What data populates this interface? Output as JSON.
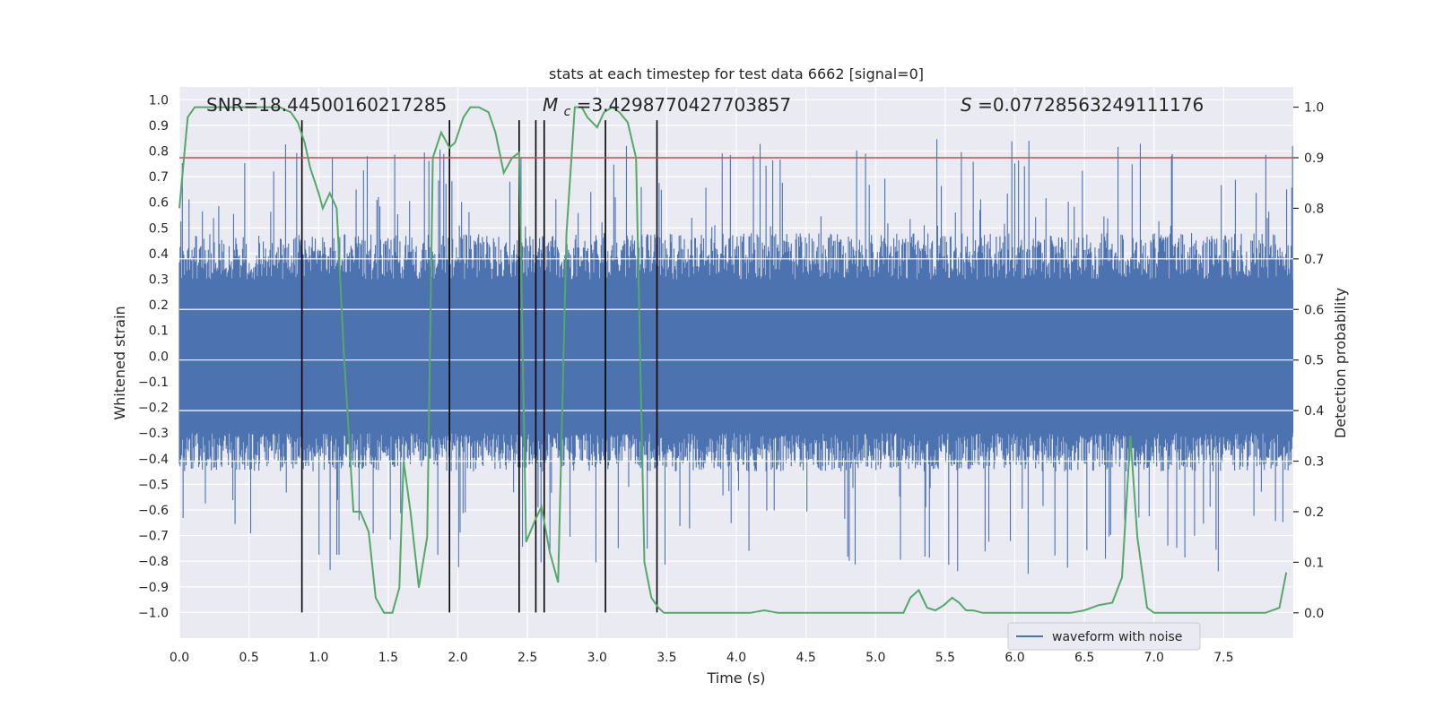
{
  "chart_data": {
    "type": "line",
    "title": "stats at each timestep for test data 6662 [signal=0]",
    "xlabel": "Time (s)",
    "ylabel": "Whitened strain",
    "ylabel_right": "Detection probability",
    "xlim": [
      0.0,
      8.0
    ],
    "ylim": [
      -1.1,
      1.05
    ],
    "ylim_right": [
      -0.05,
      1.04
    ],
    "x_ticks": [
      0.0,
      0.5,
      1.0,
      1.5,
      2.0,
      2.5,
      3.0,
      3.5,
      4.0,
      4.5,
      5.0,
      5.5,
      6.0,
      6.5,
      7.0,
      7.5
    ],
    "x_tick_labels": [
      "0.0",
      "0.5",
      "1.0",
      "1.5",
      "2.0",
      "2.5",
      "3.0",
      "3.5",
      "4.0",
      "4.5",
      "5.0",
      "5.5",
      "6.0",
      "6.5",
      "7.0",
      "7.5"
    ],
    "y_ticks": [
      1.0,
      0.9,
      0.8,
      0.7,
      0.6,
      0.5,
      0.4,
      0.3,
      0.2,
      0.1,
      0.0,
      -0.1,
      -0.2,
      -0.3,
      -0.4,
      -0.5,
      -0.6,
      -0.7,
      -0.8,
      -0.9,
      -1.0
    ],
    "y_tick_labels": [
      "1.0",
      "0.9",
      "0.8",
      "0.7",
      "0.6",
      "0.5",
      "0.4",
      "0.3",
      "0.2",
      "0.1",
      "0.0",
      "−0.1",
      "−0.2",
      "−0.3",
      "−0.4",
      "−0.5",
      "−0.6",
      "−0.7",
      "−0.8",
      "−0.9",
      "−1.0"
    ],
    "y_right_ticks": [
      1.0,
      0.9,
      0.8,
      0.7,
      0.6,
      0.5,
      0.4,
      0.3,
      0.2,
      0.1,
      0.0
    ],
    "y_right_tick_labels": [
      "1.0",
      "0.9",
      "0.8",
      "0.7",
      "0.6",
      "0.5",
      "0.4",
      "0.3",
      "0.2",
      "0.1",
      "0.0"
    ],
    "annotations": {
      "snr": "SNR=18.44500160217285",
      "mc_symbol": "M",
      "mc_sub": "c",
      "mc_value": "=3.4298770427703857",
      "s_symbol": "S",
      "s_value": "=0.07728563249111176"
    },
    "threshold_right": 0.9,
    "threshold_color": "#c44e52",
    "vertical_lines_x": [
      0.88,
      1.94,
      2.44,
      2.56,
      2.62,
      3.06,
      3.43
    ],
    "strain_color": "#4c72b0",
    "prob_color": "#55a868",
    "strain_envelope_note": "dense noise, typical band about -0.45..0.45, spikes to about +/-0.95",
    "series": [
      {
        "name": "detection probability",
        "axis": "right",
        "x": [
          0.0,
          0.06,
          0.11,
          0.17,
          0.28,
          0.39,
          0.5,
          0.61,
          0.72,
          0.8,
          0.85,
          0.9,
          0.94,
          1.0,
          1.03,
          1.08,
          1.13,
          1.18,
          1.25,
          1.3,
          1.36,
          1.41,
          1.47,
          1.53,
          1.58,
          1.61,
          1.66,
          1.72,
          1.78,
          1.82,
          1.88,
          1.94,
          1.98,
          2.04,
          2.09,
          2.15,
          2.22,
          2.27,
          2.33,
          2.39,
          2.44,
          2.49,
          2.55,
          2.6,
          2.66,
          2.72,
          2.78,
          2.84,
          2.89,
          2.93,
          3.0,
          3.05,
          3.11,
          3.16,
          3.22,
          3.28,
          3.34,
          3.39,
          3.44,
          3.48,
          3.53,
          3.58,
          3.64,
          3.71,
          3.78,
          3.85,
          3.9,
          4.0,
          4.1,
          4.2,
          4.3,
          4.4,
          4.5,
          4.6,
          4.7,
          4.8,
          4.9,
          5.0,
          5.1,
          5.2,
          5.25,
          5.31,
          5.37,
          5.43,
          5.49,
          5.55,
          5.6,
          5.65,
          5.7,
          5.77,
          5.9,
          6.0,
          6.1,
          6.2,
          6.3,
          6.4,
          6.5,
          6.6,
          6.7,
          6.77,
          6.83,
          6.88,
          6.95,
          7.0,
          7.06,
          7.12,
          7.2,
          7.3,
          7.4,
          7.5,
          7.6,
          7.7,
          7.8,
          7.9,
          7.95
        ],
        "values": [
          0.8,
          0.98,
          1.0,
          1.0,
          1.0,
          1.0,
          1.0,
          1.0,
          1.0,
          0.99,
          0.97,
          0.93,
          0.88,
          0.83,
          0.8,
          0.83,
          0.8,
          0.52,
          0.2,
          0.2,
          0.16,
          0.03,
          0.0,
          0.0,
          0.05,
          0.3,
          0.2,
          0.05,
          0.15,
          0.9,
          0.95,
          0.92,
          0.93,
          0.98,
          1.0,
          1.0,
          0.99,
          0.95,
          0.87,
          0.9,
          0.91,
          0.14,
          0.18,
          0.21,
          0.12,
          0.06,
          0.75,
          1.0,
          1.0,
          0.98,
          0.96,
          0.99,
          1.0,
          0.99,
          0.97,
          0.9,
          0.1,
          0.03,
          0.01,
          0.0,
          0.0,
          0.0,
          0.0,
          0.0,
          0.0,
          0.0,
          0.0,
          0.0,
          0.0,
          0.005,
          0.0,
          0.0,
          0.0,
          0.0,
          0.0,
          0.0,
          0.0,
          0.0,
          0.0,
          0.0,
          0.03,
          0.045,
          0.01,
          0.005,
          0.015,
          0.03,
          0.02,
          0.005,
          0.005,
          0.0,
          0.0,
          0.0,
          0.0,
          0.0,
          0.0,
          0.0,
          0.005,
          0.015,
          0.02,
          0.07,
          0.35,
          0.15,
          0.01,
          0.0,
          0.0,
          0.0,
          0.0,
          0.0,
          0.0,
          0.0,
          0.0,
          0.0,
          0.0,
          0.01,
          0.08
        ]
      }
    ],
    "legend": {
      "label": "waveform with noise",
      "placement": "lower-right"
    }
  }
}
